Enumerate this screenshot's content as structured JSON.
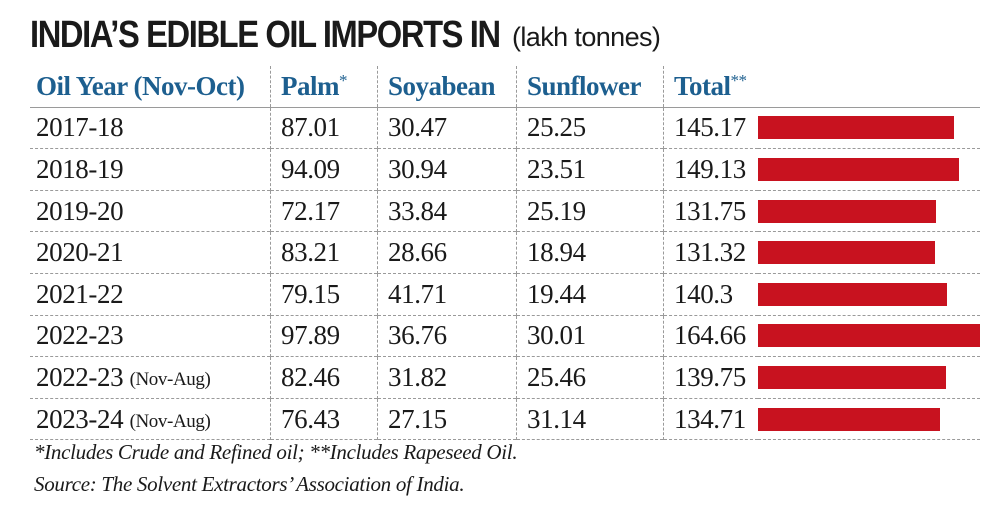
{
  "title": "INDIA’S EDIBLE OIL IMPORTS IN",
  "unit": "(lakh tonnes)",
  "footnotes": [
    "*Includes Crude and Refined oil; **Includes Rapeseed Oil.",
    "Source: The Solvent Extractors’ Association of India."
  ],
  "colors": {
    "header": "#1d5f8f",
    "bar": "#c8121f"
  },
  "chart_data": {
    "type": "table",
    "title": "INDIA’S EDIBLE OIL IMPORTS IN (lakh tonnes)",
    "columns": [
      "Oil Year (Nov-Oct)",
      "Palm",
      "Soyabean",
      "Sunflower",
      "Total"
    ],
    "column_marks": [
      "",
      "*",
      "",
      "",
      "**"
    ],
    "rows": [
      {
        "year": "2017-18",
        "note": "",
        "palm": "87.01",
        "soyabean": "30.47",
        "sunflower": "25.25",
        "total": "145.17"
      },
      {
        "year": "2018-19",
        "note": "",
        "palm": "94.09",
        "soyabean": "30.94",
        "sunflower": "23.51",
        "total": "149.13"
      },
      {
        "year": "2019-20",
        "note": "",
        "palm": "72.17",
        "soyabean": "33.84",
        "sunflower": "25.19",
        "total": "131.75"
      },
      {
        "year": "2020-21",
        "note": "",
        "palm": "83.21",
        "soyabean": "28.66",
        "sunflower": "18.94",
        "total": "131.32"
      },
      {
        "year": "2021-22",
        "note": "",
        "palm": "79.15",
        "soyabean": "41.71",
        "sunflower": "19.44",
        "total": "140.3"
      },
      {
        "year": "2022-23",
        "note": "",
        "palm": "97.89",
        "soyabean": "36.76",
        "sunflower": "30.01",
        "total": "164.66"
      },
      {
        "year": "2022-23",
        "note": "(Nov-Aug)",
        "palm": "82.46",
        "soyabean": "31.82",
        "sunflower": "25.46",
        "total": "139.75"
      },
      {
        "year": "2023-24",
        "note": "(Nov-Aug)",
        "palm": "76.43",
        "soyabean": "27.15",
        "sunflower": "31.14",
        "total": "134.71"
      }
    ],
    "bar_series": "Total",
    "bar_max": 164.66
  }
}
